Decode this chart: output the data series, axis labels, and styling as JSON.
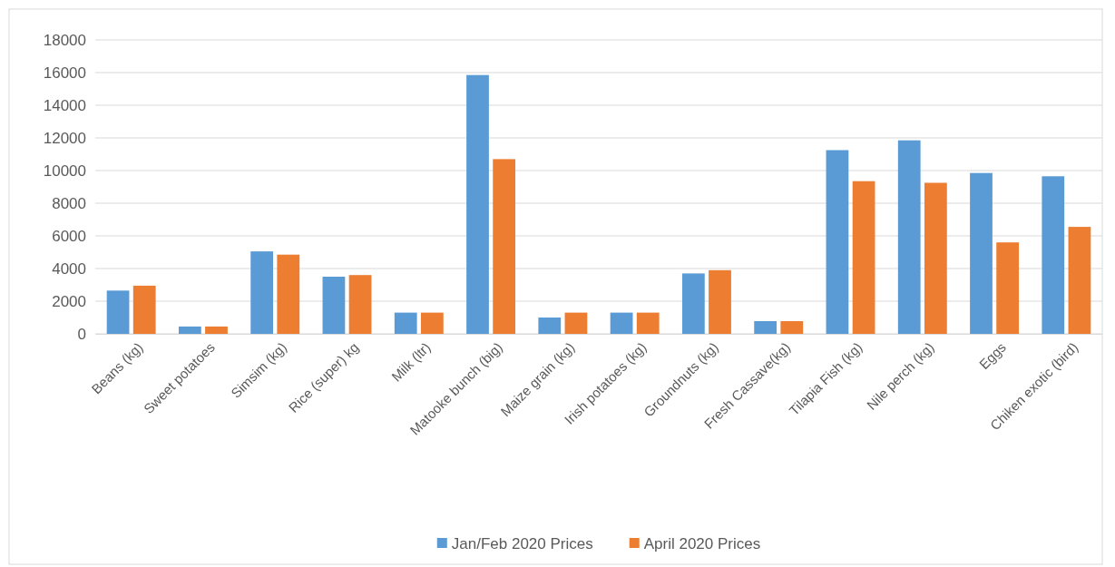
{
  "chart_data": {
    "type": "bar",
    "categories": [
      "Beans (kg)",
      "Sweet potatoes",
      "Simsim (kg)",
      "Rice (super) kg",
      "Milk (ltr)",
      "Matooke bunch (big)",
      "Maize grain (kg)",
      "Irish potatoes (kg)",
      "Groundnuts (kg)",
      "Fresh Cassave(kg)",
      "Tilapia Fish (kg)",
      "Nile perch (kg)",
      "Eggs",
      "Chiken exotic (bird)"
    ],
    "series": [
      {
        "name": "Jan/Feb 2020 Prices",
        "color": "#5b9bd5",
        "values": [
          2650,
          450,
          5050,
          3500,
          1300,
          15850,
          1000,
          1300,
          3700,
          780,
          11250,
          11850,
          9850,
          9650
        ]
      },
      {
        "name": "April 2020 Prices",
        "color": "#ed7d31",
        "values": [
          2950,
          450,
          4850,
          3600,
          1300,
          10700,
          1300,
          1300,
          3900,
          780,
          9350,
          9250,
          5600,
          6550
        ]
      }
    ],
    "ylim": [
      0,
      18000
    ],
    "yticks": [
      0,
      2000,
      4000,
      6000,
      8000,
      10000,
      12000,
      14000,
      16000,
      18000
    ],
    "grid": "y",
    "legend": "bottom"
  }
}
